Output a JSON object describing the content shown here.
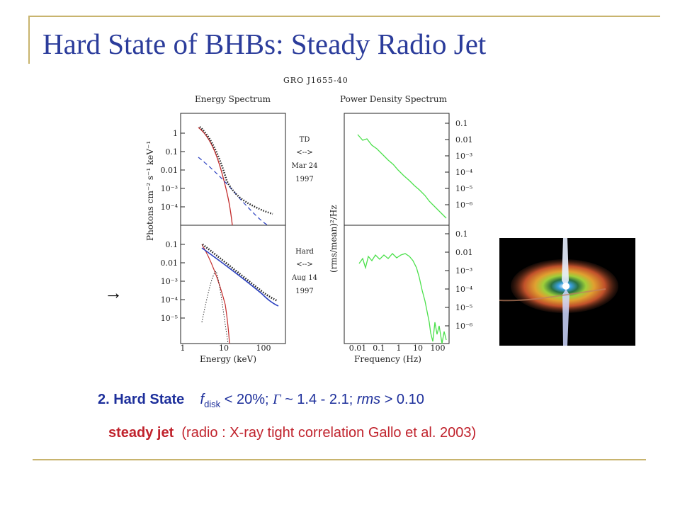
{
  "title": "Hard State of BHBs: Steady Radio Jet",
  "arrow_glyph": "→",
  "figure": {
    "source_name": "GRO J1655-40",
    "left_header": "Energy Spectrum",
    "right_header": "Power Density Spectrum",
    "left_ylabel": "Photons cm⁻² s⁻¹ keV⁻¹",
    "right_ylabel": "(rms/mean)²/Hz",
    "left_xlabel": "Energy (keV)",
    "right_xlabel": "Frequency (Hz)",
    "top_state": {
      "name": "TD",
      "arrow": "<-->",
      "date": "Mar 24",
      "year": "1997"
    },
    "bottom_state": {
      "name": "Hard",
      "arrow": "<-->",
      "date": "Aug 14",
      "year": "1997"
    },
    "energy_top_ticks": [
      "1",
      "0.1",
      "0.01",
      "10⁻³",
      "10⁻⁴"
    ],
    "energy_bottom_ticks": [
      "0.1",
      "0.01",
      "10⁻³",
      "10⁻⁴",
      "10⁻⁵"
    ],
    "energy_x_ticks": [
      "1",
      "10",
      "100"
    ],
    "pds_top_ticks": [
      "0.1",
      "0.01",
      "10⁻³",
      "10⁻⁴",
      "10⁻⁵",
      "10⁻⁶"
    ],
    "pds_bottom_ticks": [
      "0.1",
      "0.01",
      "10⁻³",
      "10⁻⁴",
      "10⁻⁵",
      "10⁻⁶"
    ],
    "pds_x_ticks": [
      "0.01",
      "0.1",
      "1",
      "10",
      "100"
    ],
    "colors": {
      "model_total": "#c22a2a",
      "powerlaw": "#2a3fc0",
      "pds": "#4be04b",
      "data": "#222222"
    }
  },
  "text": {
    "state_label": "2. Hard State",
    "f_symbol": "f",
    "f_subscript": "disk",
    "state_cond_1": " < 20%; ",
    "gamma_symbol": "Γ",
    "state_cond_2": " ~ 1.4 - 2.1; ",
    "rms_word": "rms",
    "state_cond_3": " > 0.10",
    "jet_label": "steady jet",
    "jet_note": "(radio : X-ray tight correlation Gallo et al. 2003)"
  },
  "colors": {
    "title": "#2b3c9b",
    "blue_text": "#1d2f9b",
    "red_text": "#c0222c",
    "rule": "#c8b46e"
  }
}
